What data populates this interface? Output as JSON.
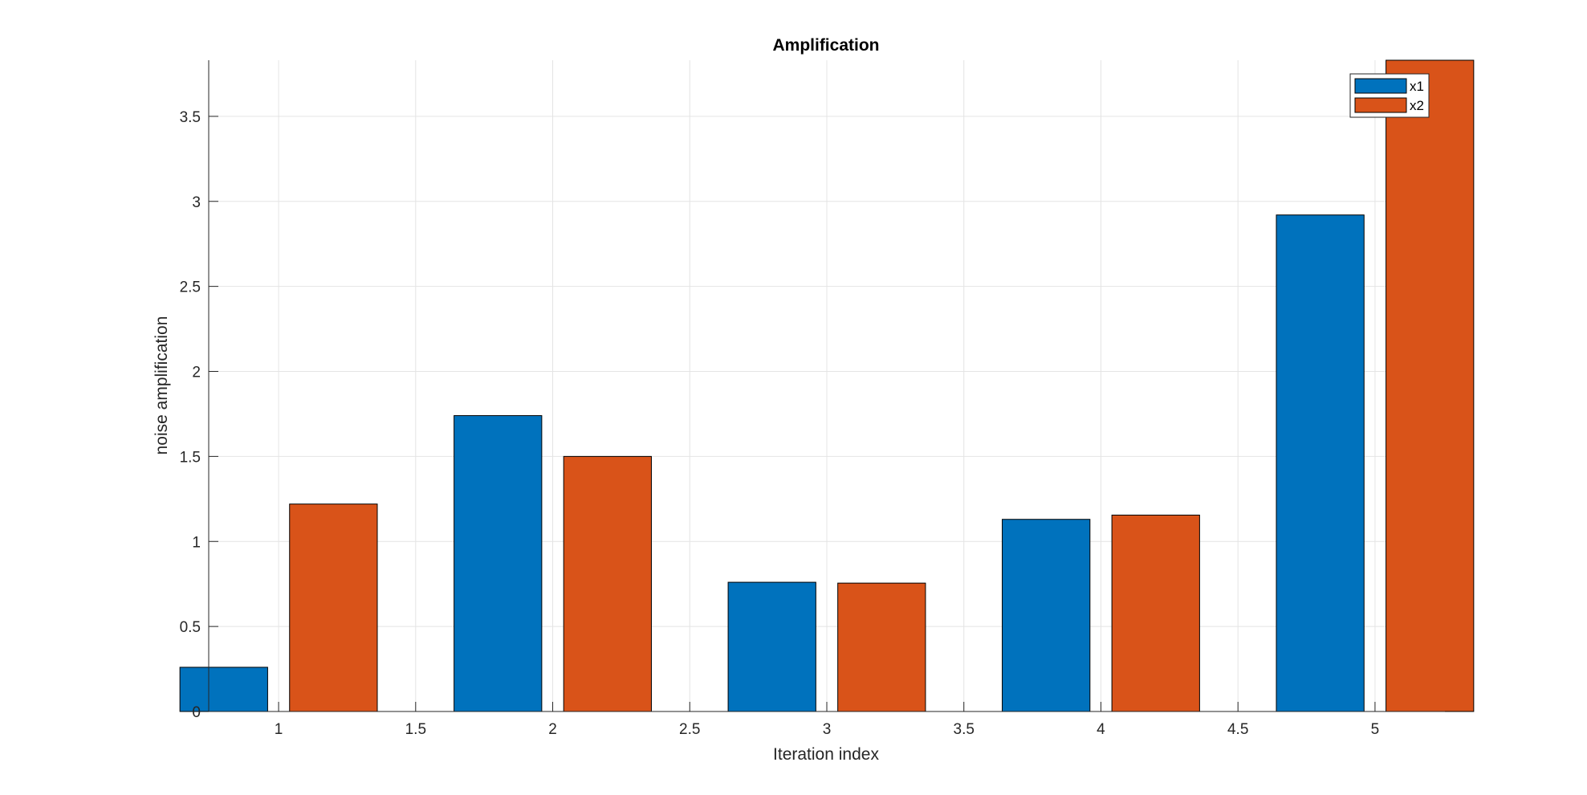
{
  "chart_data": {
    "type": "bar",
    "title": "Amplification",
    "xlabel": "Iteration index",
    "ylabel": "noise amplification",
    "categories": [
      1,
      2,
      3,
      4,
      5
    ],
    "series": [
      {
        "name": "x1",
        "values": [
          0.26,
          1.74,
          0.76,
          1.13,
          2.92
        ],
        "color": "#0072BD"
      },
      {
        "name": "x2",
        "values": [
          1.22,
          1.5,
          0.755,
          1.155,
          3.83
        ],
        "color": "#D95319"
      }
    ],
    "xlim": [
      0.745,
      5.255
    ],
    "ylim": [
      0,
      3.83
    ],
    "x_ticks": [
      1,
      1.5,
      2,
      2.5,
      3,
      3.5,
      4,
      4.5,
      5
    ],
    "x_tick_labels": [
      "1",
      "1.5",
      "2",
      "2.5",
      "3",
      "3.5",
      "4",
      "4.5",
      "5"
    ],
    "y_ticks": [
      0,
      0.5,
      1,
      1.5,
      2,
      2.5,
      3,
      3.5
    ],
    "y_tick_labels": [
      "0",
      "0.5",
      "1",
      "1.5",
      "2",
      "2.5",
      "3",
      "3.5"
    ],
    "grid": true,
    "legend_position": "top-right"
  }
}
